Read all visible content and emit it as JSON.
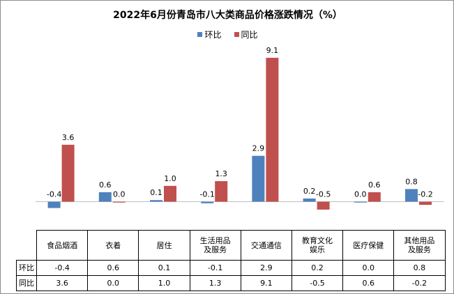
{
  "chart_data": {
    "type": "bar",
    "title": "2022年6月份青岛市八大类商品价格涨跌情况（%）",
    "categories": [
      "食品烟酒",
      "衣着",
      "居住",
      "生活用品及服务",
      "交通通信",
      "教育文化娱乐",
      "医疗保健",
      "其他用品及服务"
    ],
    "category_lines": [
      [
        "食品烟酒"
      ],
      [
        "衣着"
      ],
      [
        "居住"
      ],
      [
        "生活用品",
        "及服务"
      ],
      [
        "交通通信"
      ],
      [
        "教育文化",
        "娱乐"
      ],
      [
        "医疗保健"
      ],
      [
        "其他用品",
        "及服务"
      ]
    ],
    "series": [
      {
        "name": "环比",
        "color": "#4f81bd",
        "values": [
          -0.4,
          0.6,
          0.1,
          -0.1,
          2.9,
          0.2,
          0.0,
          0.8
        ],
        "labels": [
          "-0.4",
          "0.6",
          "0.1",
          "-0.1",
          "2.9",
          "0.2",
          "0.0",
          "0.8"
        ]
      },
      {
        "name": "同比",
        "color": "#c0504d",
        "values": [
          3.6,
          0.0,
          1.0,
          1.3,
          9.1,
          -0.5,
          0.6,
          -0.2
        ],
        "labels": [
          "3.6",
          "0.0",
          "1.0",
          "1.3",
          "9.1",
          "-0.5",
          "0.6",
          "-0.2"
        ]
      }
    ],
    "ylim": [
      -0.9,
      10.0
    ],
    "legend_position": "top-center",
    "grid": false,
    "axis_line_color": "#bfbfbf"
  }
}
